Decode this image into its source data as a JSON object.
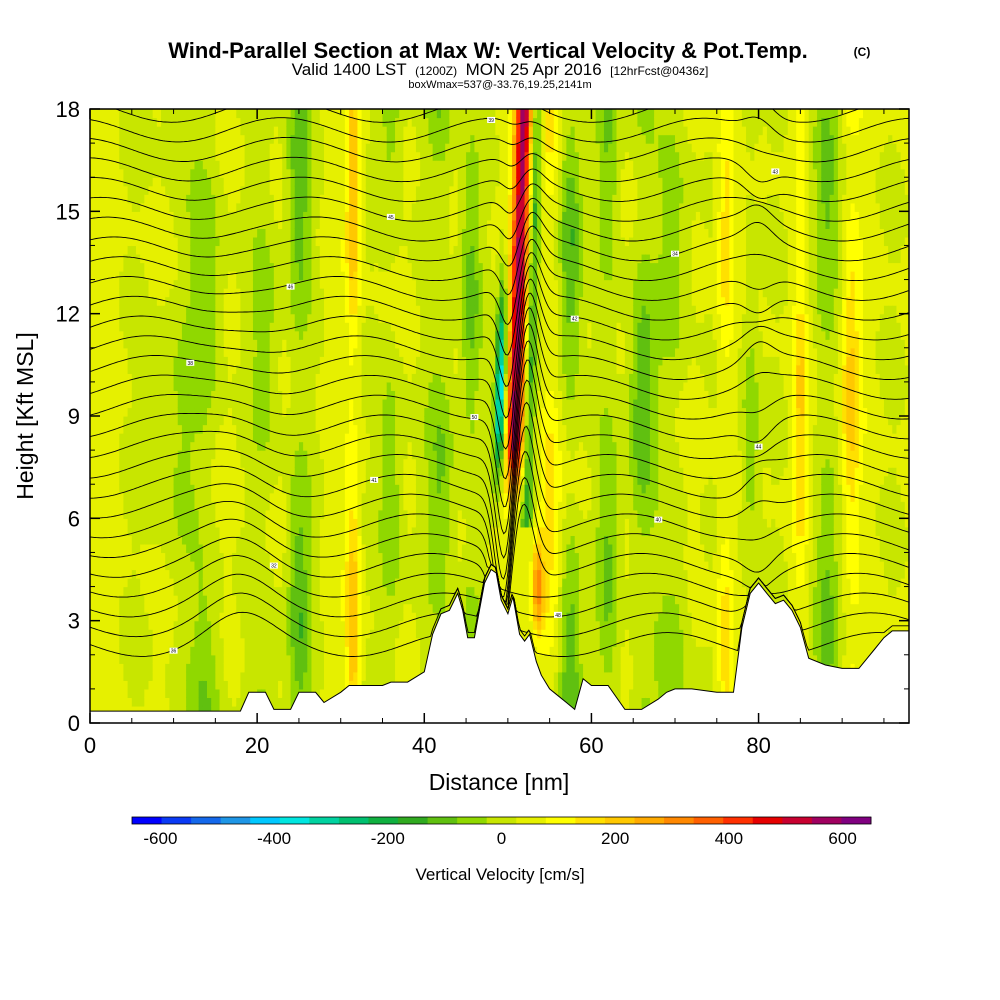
{
  "chart_data": {
    "type": "heatmap",
    "title": "Wind-Parallel Section at Max W: Vertical Velocity & Pot.Temp.",
    "copyright": "(C)",
    "subtitle": {
      "valid": "Valid 1400 LST",
      "utc": "(1200Z)",
      "date": "MON 25 Apr 2016",
      "forecast": "[12hrFcst@0436z]"
    },
    "annotation": "boxWmax=537@-33.76,19.25,2141m",
    "xlabel": "Distance [nm]",
    "ylabel": "Height [Kft MSL]",
    "xlim": [
      0,
      98
    ],
    "ylim": [
      0,
      18
    ],
    "x_ticks": [
      0,
      20,
      40,
      60,
      80
    ],
    "y_ticks": [
      0,
      3,
      6,
      9,
      12,
      15,
      18
    ],
    "colorbar": {
      "label": "Vertical Velocity [cm/s]",
      "min": -650,
      "max": 650,
      "ticks": [
        -600,
        -400,
        -200,
        0,
        200,
        400,
        600
      ],
      "colors": [
        "#0000ff",
        "#0a3af5",
        "#1468eb",
        "#1e96e6",
        "#00c8ff",
        "#00e6e0",
        "#00d2a0",
        "#00c070",
        "#10b040",
        "#30aa20",
        "#60c010",
        "#90d800",
        "#c8e600",
        "#e6f000",
        "#ffff00",
        "#ffe000",
        "#ffc800",
        "#ffaa00",
        "#ff8800",
        "#ff6000",
        "#ff3000",
        "#e60000",
        "#c80030",
        "#a00060",
        "#800080"
      ]
    },
    "terrain_profile": {
      "x": [
        0,
        18,
        19,
        21,
        22,
        24,
        25,
        27,
        28,
        30,
        31,
        33,
        35,
        36,
        38,
        40,
        41,
        42,
        43,
        44,
        44.6,
        45.2,
        46,
        46.6,
        47.2,
        48,
        48.6,
        49.2,
        50,
        50.6,
        51.4,
        52,
        52.6,
        53.4,
        54,
        55,
        56,
        57,
        58,
        59,
        60,
        62,
        64,
        66,
        68,
        69,
        70,
        72,
        75,
        77,
        78,
        79,
        80,
        81,
        82,
        83,
        84,
        85,
        86,
        88,
        90,
        92,
        94,
        95,
        96,
        97,
        98
      ],
      "z": [
        0.35,
        0.35,
        0.9,
        0.9,
        0.4,
        0.4,
        0.9,
        0.9,
        0.6,
        0.9,
        1.1,
        1.1,
        1.1,
        1.2,
        1.2,
        1.5,
        2.6,
        3.2,
        3.3,
        3.8,
        3.3,
        2.5,
        2.5,
        3.3,
        4.1,
        4.5,
        4.4,
        3.6,
        3.2,
        3.7,
        2.6,
        2.4,
        2.6,
        1.8,
        1.4,
        1.0,
        0.8,
        0.6,
        0.4,
        1.3,
        1.1,
        1.1,
        0.4,
        0.4,
        0.7,
        0.9,
        1.0,
        1.0,
        0.9,
        0.9,
        2.8,
        3.8,
        4.1,
        3.8,
        3.5,
        3.6,
        3.3,
        2.8,
        1.9,
        1.7,
        1.6,
        1.6,
        2.2,
        2.5,
        2.7,
        2.7,
        2.7
      ]
    },
    "updraft": {
      "center_x": 51.5,
      "base_z": 6.0,
      "top_z": 18.0,
      "max_w_cms": 537,
      "downdraft_min_w_cms": -450
    },
    "isentropes": {
      "count": 28,
      "contour_labels": [
        "36",
        "48",
        "32",
        "40",
        "41",
        "44",
        "50",
        "38",
        "42",
        "46",
        "34",
        "45",
        "43",
        "39",
        "37",
        "35",
        "33",
        "31",
        "30",
        "49",
        "47"
      ]
    }
  }
}
